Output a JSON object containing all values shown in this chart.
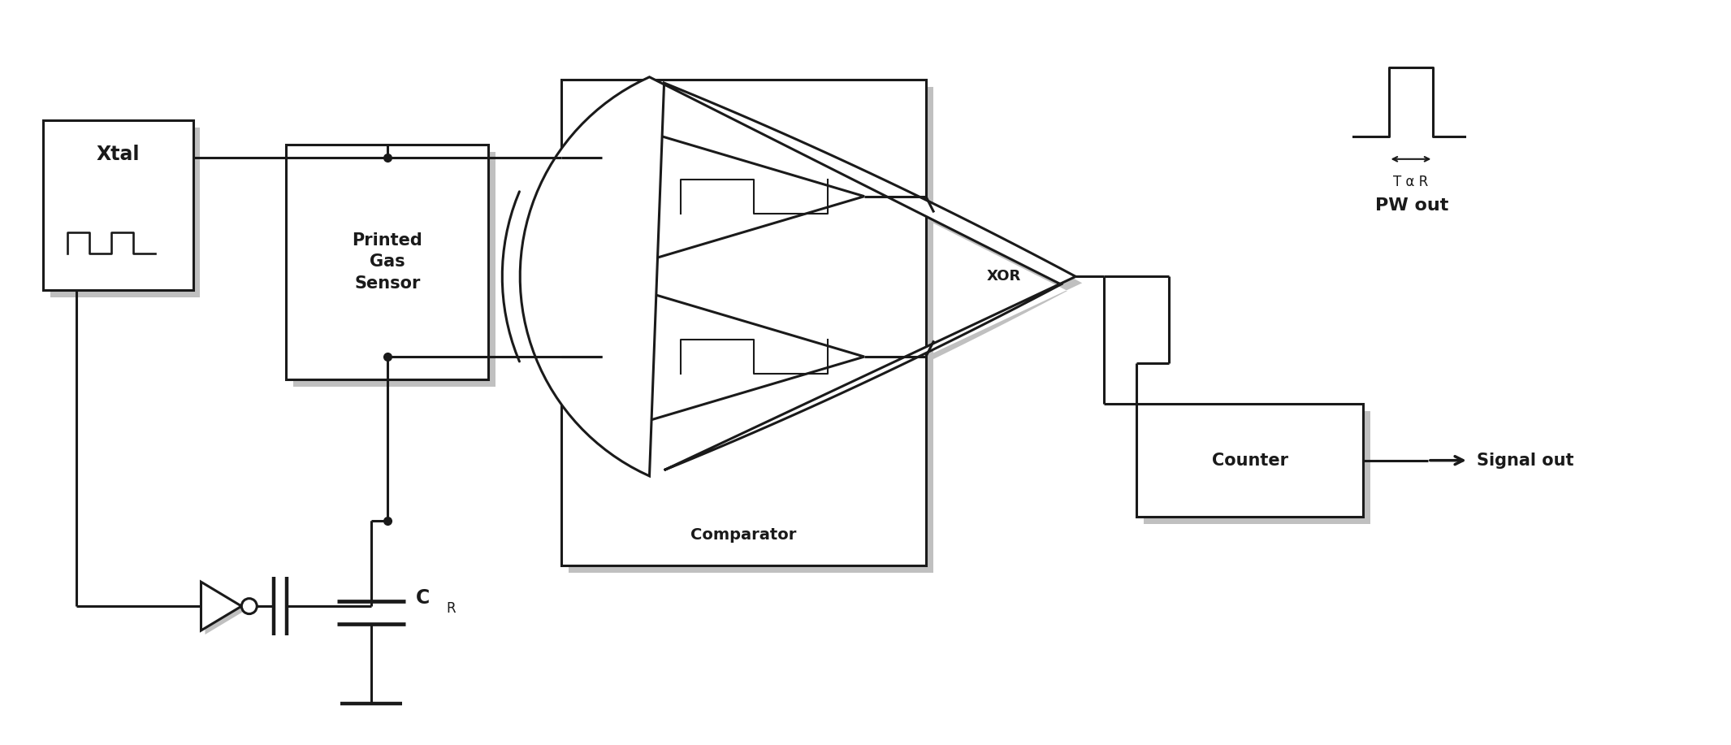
{
  "bg_color": "#ffffff",
  "line_color": "#1a1a1a",
  "shadow_color": "#c0c0c0",
  "lw": 2.2,
  "fig_width": 21.31,
  "fig_height": 9.17,
  "labels": {
    "xtal": "Xtal",
    "printed_gas_sensor": "Printed\nGas\nSensor",
    "comparator": "Comparator",
    "xor": "XOR",
    "counter": "Counter",
    "cr": "C",
    "cr_sub": "R",
    "pw_out": "PW out",
    "t_alpha_r": "T α R",
    "signal_out": "Signal out"
  }
}
